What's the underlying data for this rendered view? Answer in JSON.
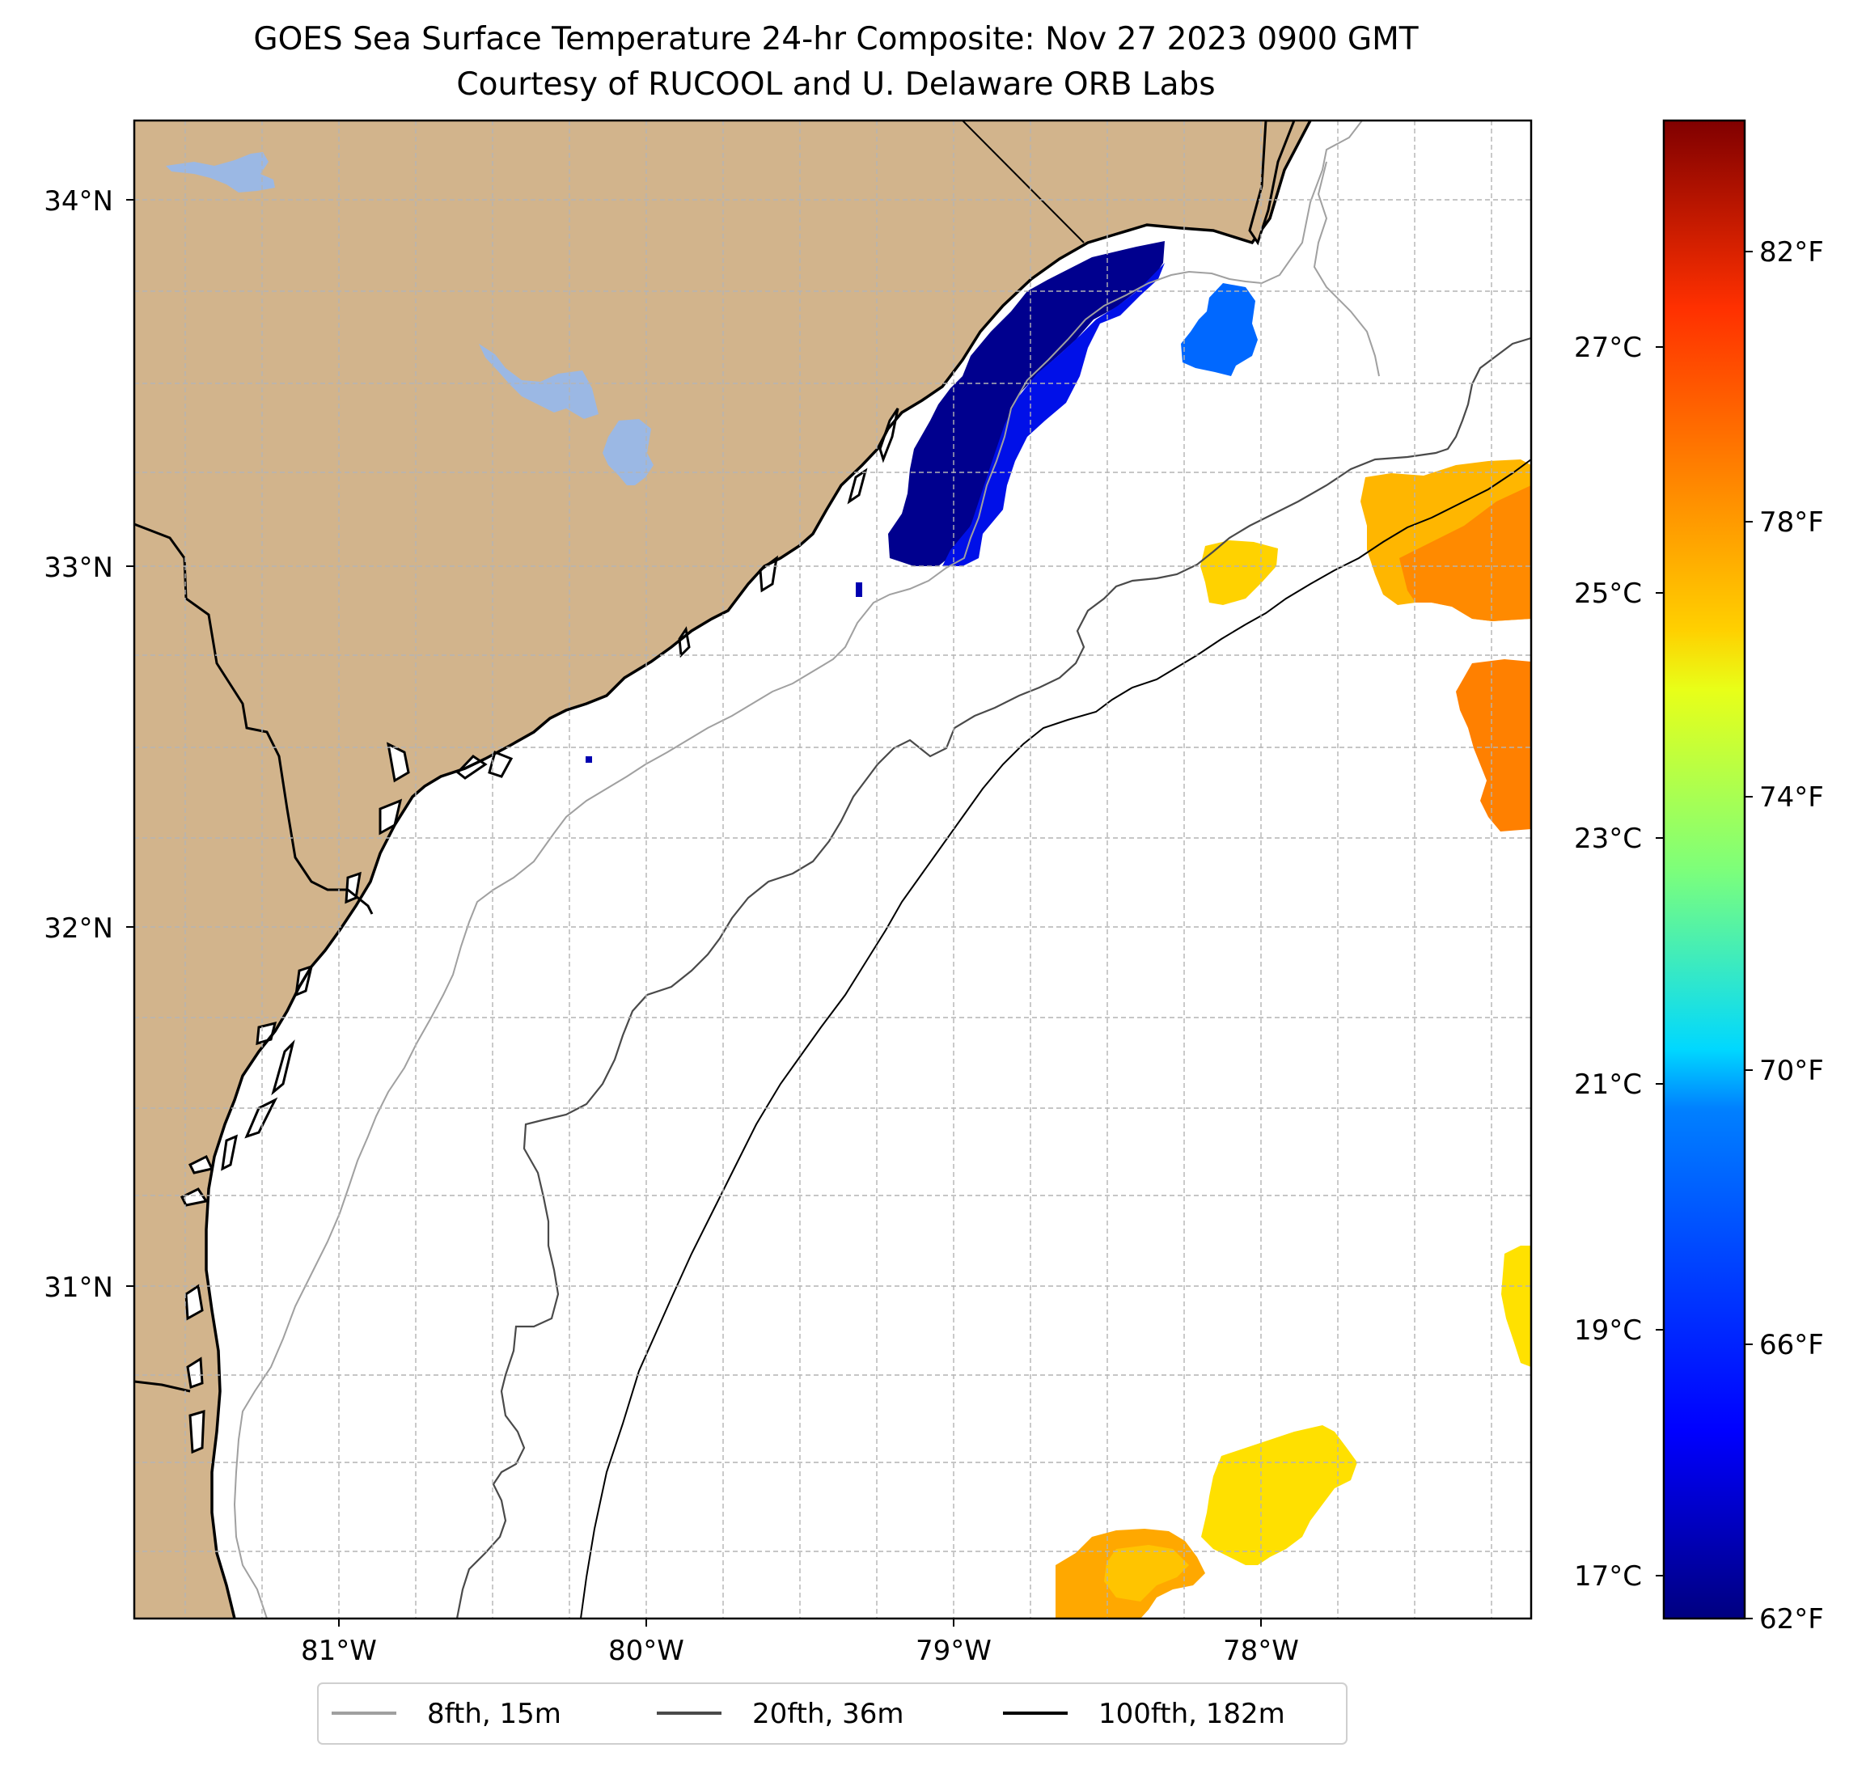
{
  "title": "GOES Sea Surface Temperature 24-hr Composite: Nov 27 2023 0900 GMT",
  "subtitle": "Courtesy of RUCOOL and U. Delaware ORB Labs",
  "colors": {
    "land": "#d2b48c",
    "lakes": "#9bb8e4",
    "ocean": "#ffffff",
    "contour_8fth": "#a0a0a0",
    "contour_20fth": "#4a4a4a",
    "contour_100fth": "#000000"
  },
  "map": {
    "lon_range": [
      -81.68,
      -77.12
    ],
    "lat_range": [
      30.06,
      34.22
    ],
    "lat_labels": [
      "34°N",
      "33°N",
      "32°N",
      "31°N"
    ],
    "lon_labels": [
      "81°W",
      "80°W",
      "79°W",
      "78°W"
    ]
  },
  "colorbar": {
    "range_f": [
      62,
      84.5
    ],
    "f_labels": [
      "82°F",
      "78°F",
      "74°F",
      "70°F",
      "66°F",
      "62°F"
    ],
    "c_labels": [
      "27°C",
      "25°C",
      "23°C",
      "21°C",
      "19°C",
      "17°C"
    ]
  },
  "legend": {
    "items": [
      {
        "label": "8fth, 15m"
      },
      {
        "label": "20fth, 36m"
      },
      {
        "label": "100fth, 182m"
      }
    ]
  },
  "sst_patches": [
    {
      "name": "cold-coastal-band",
      "temp_f": 62.5
    },
    {
      "name": "inner-shelf-band",
      "temp_f": 64.5
    },
    {
      "name": "offshore-cool-patch",
      "temp_f": 66.5
    },
    {
      "name": "gulfstream-patch-north",
      "temp_f": 78.5
    },
    {
      "name": "gulfstream-patch-mid",
      "temp_f": 79.5
    },
    {
      "name": "shelf-warm-patch",
      "temp_f": 77.5
    },
    {
      "name": "southeast-patch",
      "temp_f": 77.5
    },
    {
      "name": "south-patch-yellow",
      "temp_f": 77.0
    },
    {
      "name": "south-patch-orange",
      "temp_f": 78.5
    }
  ]
}
